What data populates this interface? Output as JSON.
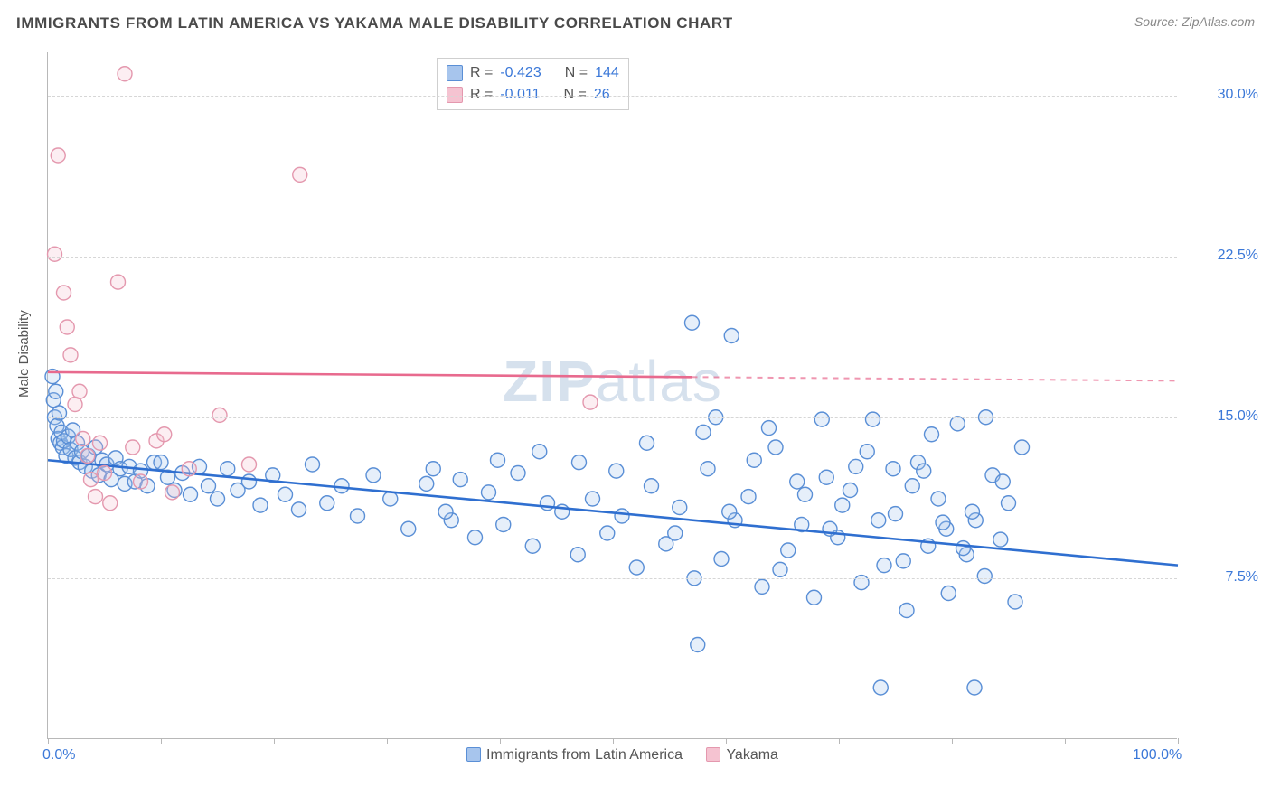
{
  "title": "IMMIGRANTS FROM LATIN AMERICA VS YAKAMA MALE DISABILITY CORRELATION CHART",
  "source_label": "Source: ZipAtlas.com",
  "y_axis_label": "Male Disability",
  "watermark": {
    "text_bold": "ZIP",
    "text_light": "atlas"
  },
  "chart": {
    "type": "scatter",
    "xlim": [
      0,
      100
    ],
    "ylim": [
      0,
      32
    ],
    "x_tick_positions": [
      0,
      10,
      20,
      30,
      40,
      50,
      60,
      70,
      80,
      90,
      100
    ],
    "x_tick_labels_shown": {
      "0": "0.0%",
      "100": "100.0%"
    },
    "y_gridlines": [
      7.5,
      15.0,
      22.5,
      30.0
    ],
    "y_tick_labels": [
      "7.5%",
      "15.0%",
      "22.5%",
      "30.0%"
    ],
    "background_color": "#ffffff",
    "grid_color": "#d6d6d6",
    "axis_color": "#b8b8b8",
    "tick_label_color": "#3b78d8",
    "marker_radius": 8,
    "marker_stroke_width": 1.4,
    "fill_opacity": 0.28
  },
  "series": [
    {
      "name": "Immigrants from Latin America",
      "color_line": "#2f6fd0",
      "color_fill": "#a7c5ed",
      "color_stroke": "#5a8fd6",
      "regression": {
        "y_at_x0": 13.0,
        "y_at_x100": 8.1,
        "dashed_after_x": null
      },
      "points": [
        [
          0.4,
          16.9
        ],
        [
          0.5,
          15.8
        ],
        [
          0.6,
          15.0
        ],
        [
          0.7,
          16.2
        ],
        [
          0.8,
          14.6
        ],
        [
          0.9,
          14.0
        ],
        [
          1.0,
          15.2
        ],
        [
          1.1,
          13.8
        ],
        [
          1.2,
          14.3
        ],
        [
          1.3,
          13.6
        ],
        [
          1.4,
          13.9
        ],
        [
          1.6,
          13.2
        ],
        [
          1.8,
          14.1
        ],
        [
          2.0,
          13.5
        ],
        [
          2.2,
          14.4
        ],
        [
          2.4,
          13.1
        ],
        [
          2.6,
          13.8
        ],
        [
          2.8,
          12.9
        ],
        [
          3.0,
          13.4
        ],
        [
          3.3,
          12.7
        ],
        [
          3.6,
          13.2
        ],
        [
          3.9,
          12.5
        ],
        [
          4.2,
          13.6
        ],
        [
          4.5,
          12.3
        ],
        [
          4.8,
          13.0
        ],
        [
          5.2,
          12.8
        ],
        [
          5.6,
          12.1
        ],
        [
          6.0,
          13.1
        ],
        [
          6.4,
          12.6
        ],
        [
          6.8,
          11.9
        ],
        [
          7.2,
          12.7
        ],
        [
          7.7,
          12.0
        ],
        [
          8.2,
          12.5
        ],
        [
          8.8,
          11.8
        ],
        [
          9.4,
          12.9
        ],
        [
          10.0,
          12.9
        ],
        [
          10.6,
          12.2
        ],
        [
          11.2,
          11.6
        ],
        [
          11.9,
          12.4
        ],
        [
          12.6,
          11.4
        ],
        [
          13.4,
          12.7
        ],
        [
          14.2,
          11.8
        ],
        [
          15.0,
          11.2
        ],
        [
          15.9,
          12.6
        ],
        [
          16.8,
          11.6
        ],
        [
          17.8,
          12.0
        ],
        [
          18.8,
          10.9
        ],
        [
          19.9,
          12.3
        ],
        [
          21.0,
          11.4
        ],
        [
          22.2,
          10.7
        ],
        [
          23.4,
          12.8
        ],
        [
          24.7,
          11.0
        ],
        [
          26.0,
          11.8
        ],
        [
          27.4,
          10.4
        ],
        [
          28.8,
          12.3
        ],
        [
          30.3,
          11.2
        ],
        [
          31.9,
          9.8
        ],
        [
          33.5,
          11.9
        ],
        [
          35.7,
          10.2
        ],
        [
          34.1,
          12.6
        ],
        [
          35.2,
          10.6
        ],
        [
          36.5,
          12.1
        ],
        [
          37.8,
          9.4
        ],
        [
          39.0,
          11.5
        ],
        [
          40.3,
          10.0
        ],
        [
          41.6,
          12.4
        ],
        [
          42.9,
          9.0
        ],
        [
          44.2,
          11.0
        ],
        [
          45.5,
          10.6
        ],
        [
          46.9,
          8.6
        ],
        [
          48.2,
          11.2
        ],
        [
          49.5,
          9.6
        ],
        [
          50.8,
          10.4
        ],
        [
          52.1,
          8.0
        ],
        [
          53.4,
          11.8
        ],
        [
          54.7,
          9.1
        ],
        [
          55.9,
          10.8
        ],
        [
          57.2,
          7.5
        ],
        [
          58.4,
          12.6
        ],
        [
          59.6,
          8.4
        ],
        [
          57.0,
          19.4
        ],
        [
          60.5,
          18.8
        ],
        [
          59.1,
          15.0
        ],
        [
          60.8,
          10.2
        ],
        [
          62.0,
          11.3
        ],
        [
          63.2,
          7.1
        ],
        [
          64.4,
          13.6
        ],
        [
          65.5,
          8.8
        ],
        [
          66.7,
          10.0
        ],
        [
          67.8,
          6.6
        ],
        [
          68.9,
          12.2
        ],
        [
          69.9,
          9.4
        ],
        [
          71.0,
          11.6
        ],
        [
          72.0,
          7.3
        ],
        [
          73.0,
          14.9
        ],
        [
          74.0,
          8.1
        ],
        [
          75.0,
          10.5
        ],
        [
          76.0,
          6.0
        ],
        [
          77.0,
          12.9
        ],
        [
          77.9,
          9.0
        ],
        [
          78.8,
          11.2
        ],
        [
          79.7,
          6.8
        ],
        [
          80.5,
          14.7
        ],
        [
          81.3,
          8.6
        ],
        [
          82.1,
          10.2
        ],
        [
          82.9,
          7.6
        ],
        [
          83.6,
          12.3
        ],
        [
          84.3,
          9.3
        ],
        [
          85.0,
          11.0
        ],
        [
          85.6,
          6.4
        ],
        [
          57.5,
          4.4
        ],
        [
          73.7,
          2.4
        ],
        [
          82.0,
          2.4
        ],
        [
          63.8,
          14.5
        ],
        [
          66.3,
          12.0
        ],
        [
          68.5,
          14.9
        ],
        [
          70.3,
          10.9
        ],
        [
          72.5,
          13.4
        ],
        [
          74.8,
          12.6
        ],
        [
          76.5,
          11.8
        ],
        [
          78.2,
          14.2
        ],
        [
          79.5,
          9.8
        ],
        [
          81.8,
          10.6
        ],
        [
          83.0,
          15.0
        ],
        [
          84.5,
          12.0
        ],
        [
          86.2,
          13.6
        ],
        [
          39.8,
          13.0
        ],
        [
          43.5,
          13.4
        ],
        [
          47.0,
          12.9
        ],
        [
          50.3,
          12.5
        ],
        [
          53.0,
          13.8
        ],
        [
          55.5,
          9.6
        ],
        [
          58.0,
          14.3
        ],
        [
          60.3,
          10.6
        ],
        [
          62.5,
          13.0
        ],
        [
          64.8,
          7.9
        ],
        [
          67.0,
          11.4
        ],
        [
          69.2,
          9.8
        ],
        [
          71.5,
          12.7
        ],
        [
          73.5,
          10.2
        ],
        [
          75.7,
          8.3
        ],
        [
          77.5,
          12.5
        ],
        [
          79.2,
          10.1
        ],
        [
          81.0,
          8.9
        ]
      ]
    },
    {
      "name": "Yakama",
      "color_line": "#e86a8e",
      "color_fill": "#f5c3d1",
      "color_stroke": "#e498ae",
      "regression": {
        "y_at_x0": 17.1,
        "y_at_x100": 16.7,
        "dashed_after_x": 57
      },
      "points": [
        [
          0.6,
          22.6
        ],
        [
          0.9,
          27.2
        ],
        [
          1.4,
          20.8
        ],
        [
          1.7,
          19.2
        ],
        [
          2.0,
          17.9
        ],
        [
          2.4,
          15.6
        ],
        [
          2.8,
          16.2
        ],
        [
          3.1,
          14.0
        ],
        [
          3.5,
          13.2
        ],
        [
          3.8,
          12.1
        ],
        [
          4.2,
          11.3
        ],
        [
          4.6,
          13.8
        ],
        [
          5.0,
          12.4
        ],
        [
          5.5,
          11.0
        ],
        [
          6.2,
          21.3
        ],
        [
          6.8,
          31.0
        ],
        [
          7.5,
          13.6
        ],
        [
          8.2,
          12.0
        ],
        [
          9.6,
          13.9
        ],
        [
          11.0,
          11.5
        ],
        [
          15.2,
          15.1
        ],
        [
          17.8,
          12.8
        ],
        [
          22.3,
          26.3
        ],
        [
          48.0,
          15.7
        ],
        [
          10.3,
          14.2
        ],
        [
          12.5,
          12.6
        ]
      ]
    }
  ],
  "stats_box": {
    "rows": [
      {
        "color_fill": "#a7c5ed",
        "color_stroke": "#5a8fd6",
        "r_label": "R =",
        "r_value": "-0.423",
        "n_label": "N =",
        "n_value": "144"
      },
      {
        "color_fill": "#f5c3d1",
        "color_stroke": "#e498ae",
        "r_label": "R =",
        "r_value": "-0.011",
        "n_label": "N =",
        "n_value": "26"
      }
    ],
    "value_color": "#3b78d8",
    "label_color": "#555555"
  },
  "bottom_legend": {
    "items": [
      {
        "color_fill": "#a7c5ed",
        "color_stroke": "#5a8fd6",
        "label": "Immigrants from Latin America"
      },
      {
        "color_fill": "#f5c3d1",
        "color_stroke": "#e498ae",
        "label": "Yakama"
      }
    ]
  }
}
